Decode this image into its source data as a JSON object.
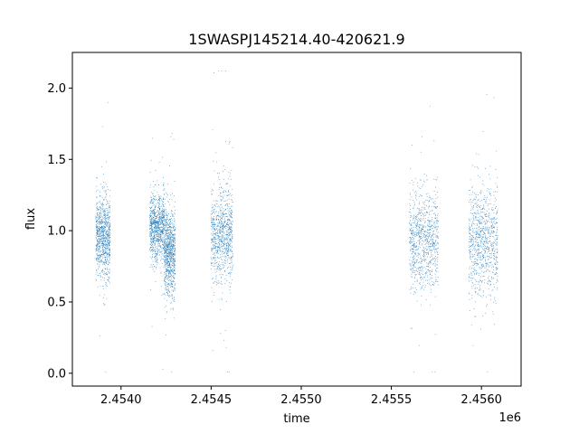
{
  "chart_data": {
    "type": "scatter",
    "title": "1SWASPJ145214.40-420621.9",
    "xlabel": "time",
    "ylabel": "flux",
    "x_offset_label": "1e6",
    "x_ticks": [
      2.454,
      2.4545,
      2.455,
      2.4555,
      2.456
    ],
    "x_tick_labels": [
      "2.4540",
      "2.4545",
      "2.4550",
      "2.4555",
      "2.4560"
    ],
    "y_ticks": [
      0.0,
      0.5,
      1.0,
      1.5,
      2.0
    ],
    "y_tick_labels": [
      "0.0",
      "0.5",
      "1.0",
      "1.5",
      "2.0"
    ],
    "xlim": [
      2.45373,
      2.45622
    ],
    "ylim": [
      -0.09,
      2.25
    ],
    "grid": false,
    "marker_color": "#1f77b4",
    "observing_seasons": [
      {
        "x_start": 2.45386,
        "x_end": 2.45394,
        "flux_center": 0.95,
        "flux_spread": 0.14
      },
      {
        "x_start": 2.45416,
        "x_end": 2.45424,
        "flux_center": 1.02,
        "flux_spread": 0.12
      },
      {
        "x_start": 2.45424,
        "x_end": 2.4543,
        "flux_center": 0.85,
        "flux_spread": 0.15
      },
      {
        "x_start": 2.4545,
        "x_end": 2.45462,
        "flux_center": 0.97,
        "flux_spread": 0.16
      },
      {
        "x_start": 2.4556,
        "x_end": 2.45576,
        "flux_center": 0.93,
        "flux_spread": 0.17
      },
      {
        "x_start": 2.45593,
        "x_end": 2.45609,
        "flux_center": 0.93,
        "flux_spread": 0.19
      }
    ]
  }
}
